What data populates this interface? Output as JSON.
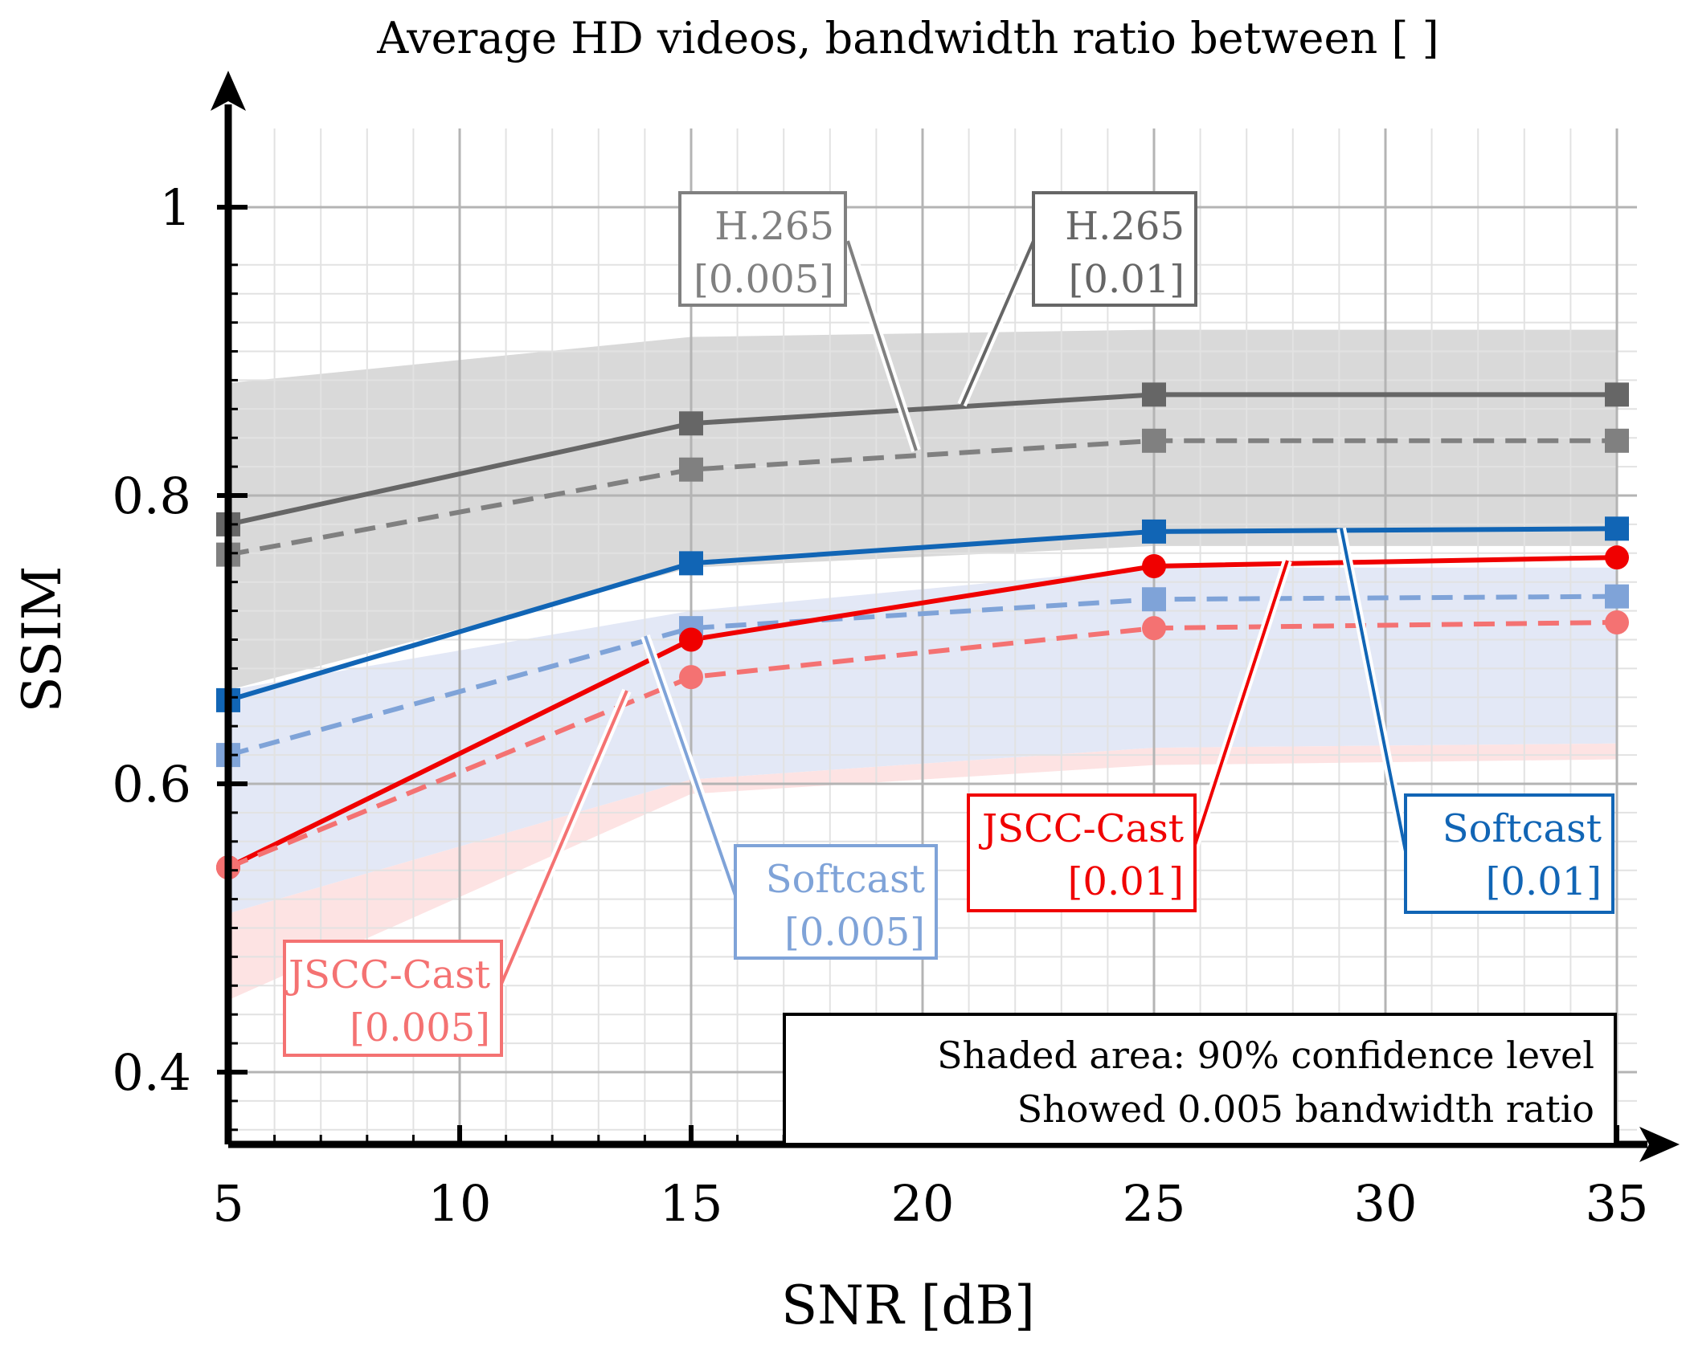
{
  "chart_data": {
    "type": "line",
    "title": "Average HD videos, bandwidth ratio between [ ]",
    "xlabel": "SNR [dB]",
    "ylabel": "SSIM",
    "xlim": [
      5,
      36
    ],
    "ylim": [
      0.35,
      1.05
    ],
    "x_ticks": [
      5,
      10,
      15,
      20,
      25,
      30,
      35
    ],
    "x_tick_labels": [
      "5",
      "10",
      "15",
      "20",
      "25",
      "30",
      "35"
    ],
    "y_ticks": [
      0.4,
      0.6,
      0.8,
      1.0
    ],
    "y_tick_labels": [
      "0.4",
      "0.6",
      "0.8",
      "1"
    ],
    "grid": true,
    "x": [
      5,
      15,
      25,
      35
    ],
    "series": [
      {
        "name": "H.265 [0.01]",
        "values": [
          0.78,
          0.85,
          0.87,
          0.87
        ],
        "color": "#666666",
        "dash": "solid",
        "marker": "square"
      },
      {
        "name": "H.265 [0.005]",
        "values": [
          0.759,
          0.818,
          0.838,
          0.838
        ],
        "color": "#808080",
        "dash": "dashed",
        "marker": "square"
      },
      {
        "name": "Softcast [0.01]",
        "values": [
          0.658,
          0.753,
          0.775,
          0.777
        ],
        "color": "#1165b5",
        "dash": "solid",
        "marker": "square"
      },
      {
        "name": "Softcast [0.005]",
        "values": [
          0.62,
          0.708,
          0.728,
          0.73
        ],
        "color": "#7fa3d8",
        "dash": "dashed",
        "marker": "square"
      },
      {
        "name": "JSCC-Cast [0.01]",
        "values": [
          0.542,
          0.7,
          0.751,
          0.757
        ],
        "color": "#f00000",
        "dash": "solid",
        "marker": "circle"
      },
      {
        "name": "JSCC-Cast [0.005]",
        "values": [
          0.542,
          0.674,
          0.708,
          0.712
        ],
        "color": "#f47272",
        "dash": "dashed",
        "marker": "circle"
      }
    ],
    "confidence_bands": [
      {
        "name": "H.265 [0.005] 90% confidence",
        "lower": [
          0.665,
          0.75,
          0.765,
          0.765
        ],
        "upper": [
          0.878,
          0.91,
          0.915,
          0.915
        ],
        "color": "#d9d9d9"
      },
      {
        "name": "Softcast [0.005] 90% confidence",
        "lower": [
          0.51,
          0.603,
          0.625,
          0.628
        ],
        "upper": [
          0.665,
          0.72,
          0.75,
          0.75
        ],
        "color": "#e3e8f6"
      },
      {
        "name": "JSCC-Cast [0.005] 90% confidence",
        "lower": [
          0.45,
          0.593,
          0.613,
          0.617
        ],
        "upper": [
          0.51,
          0.603,
          0.625,
          0.628
        ],
        "color": "#fde3e3"
      }
    ],
    "callouts": [
      {
        "series": "H.265 [0.005]",
        "line1": "H.265",
        "line2": "[0.005]",
        "color": "#808080"
      },
      {
        "series": "H.265 [0.01]",
        "line1": "H.265",
        "line2": "[0.01]",
        "color": "#666666"
      },
      {
        "series": "Softcast [0.005]",
        "line1": "Softcast",
        "line2": "[0.005]",
        "color": "#7fa3d8"
      },
      {
        "series": "JSCC-Cast [0.005]",
        "line1": "JSCC-Cast",
        "line2": "[0.005]",
        "color": "#f47272"
      },
      {
        "series": "JSCC-Cast [0.01]",
        "line1": "JSCC-Cast",
        "line2": "[0.01]",
        "color": "#f00000"
      },
      {
        "series": "Softcast [0.01]",
        "line1": "Softcast",
        "line2": "[0.01]",
        "color": "#1165b5"
      }
    ],
    "annotation": {
      "line1": "Shaded area: 90% confidence level",
      "line2": "Showed 0.005 bandwidth ratio",
      "placement": "bottom-right"
    }
  }
}
